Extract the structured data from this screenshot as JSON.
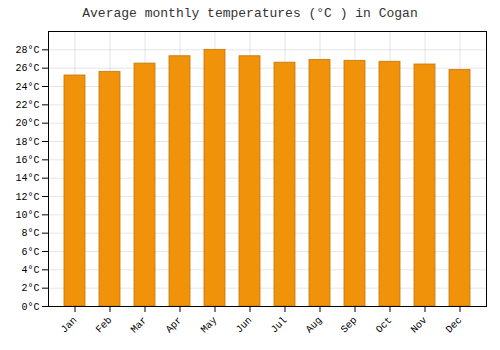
{
  "chart_data": {
    "type": "bar",
    "title": "Average monthly temperatures (°C ) in Cogan",
    "categories": [
      "Jan",
      "Feb",
      "Mar",
      "Apr",
      "May",
      "Jun",
      "Jul",
      "Aug",
      "Sep",
      "Oct",
      "Nov",
      "Dec"
    ],
    "values": [
      25.2,
      25.6,
      26.5,
      27.3,
      28.0,
      27.3,
      26.6,
      26.9,
      26.8,
      26.7,
      26.4,
      25.8
    ],
    "color": "#F0920A",
    "ylim": [
      0,
      30
    ],
    "yticks": [
      {
        "value": 0,
        "label": "0°C"
      },
      {
        "value": 2,
        "label": "2°C"
      },
      {
        "value": 4,
        "label": "4°C"
      },
      {
        "value": 6,
        "label": "6°C"
      },
      {
        "value": 8,
        "label": "8°C"
      },
      {
        "value": 10,
        "label": "10°C"
      },
      {
        "value": 12,
        "label": "12°C"
      },
      {
        "value": 14,
        "label": "14°C"
      },
      {
        "value": 16,
        "label": "16°C"
      },
      {
        "value": 18,
        "label": "18°C"
      },
      {
        "value": 20,
        "label": "20°C"
      },
      {
        "value": 22,
        "label": "22°C"
      },
      {
        "value": 24,
        "label": "24°C"
      },
      {
        "value": 26,
        "label": "26°C"
      },
      {
        "value": 28,
        "label": "28°C"
      }
    ],
    "grid": true
  }
}
